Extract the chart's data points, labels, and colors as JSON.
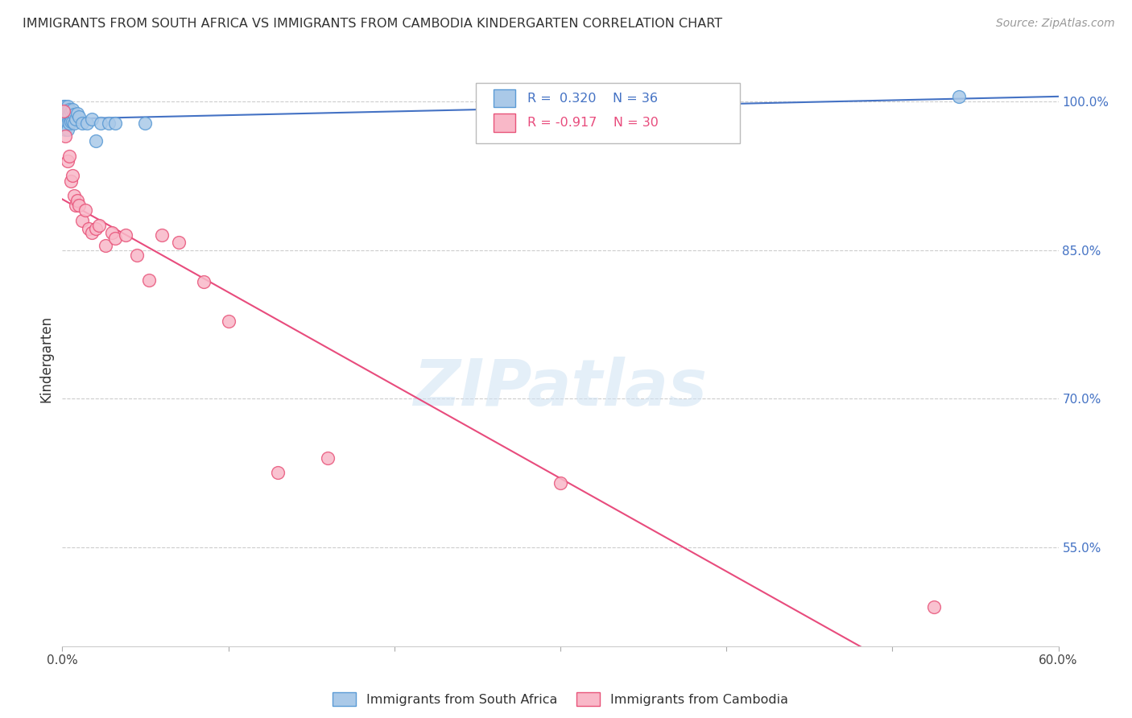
{
  "title": "IMMIGRANTS FROM SOUTH AFRICA VS IMMIGRANTS FROM CAMBODIA KINDERGARTEN CORRELATION CHART",
  "source": "Source: ZipAtlas.com",
  "ylabel": "Kindergarten",
  "x_min": 0.0,
  "x_max": 0.6,
  "y_min": 0.45,
  "y_max": 1.03,
  "x_ticks": [
    0.0,
    0.1,
    0.2,
    0.3,
    0.4,
    0.5,
    0.6
  ],
  "x_tick_labels": [
    "0.0%",
    "",
    "",
    "",
    "",
    "",
    "60.0%"
  ],
  "y_ticks_right": [
    1.0,
    0.85,
    0.7,
    0.55
  ],
  "y_tick_labels_right": [
    "100.0%",
    "85.0%",
    "70.0%",
    "55.0%"
  ],
  "south_africa_color": "#aac9e8",
  "cambodia_color": "#f9b8c8",
  "south_africa_edge_color": "#5b9bd5",
  "cambodia_edge_color": "#e8547a",
  "south_africa_line_color": "#4472c4",
  "cambodia_line_color": "#e84c7d",
  "watermark": "ZIPatlas",
  "south_africa_x": [
    0.001,
    0.001,
    0.001,
    0.001,
    0.001,
    0.002,
    0.002,
    0.002,
    0.002,
    0.002,
    0.003,
    0.003,
    0.003,
    0.003,
    0.003,
    0.004,
    0.004,
    0.004,
    0.005,
    0.005,
    0.006,
    0.006,
    0.007,
    0.007,
    0.008,
    0.009,
    0.01,
    0.012,
    0.015,
    0.018,
    0.02,
    0.023,
    0.028,
    0.032,
    0.05,
    0.54
  ],
  "south_africa_y": [
    0.995,
    0.99,
    0.985,
    0.98,
    0.975,
    0.995,
    0.99,
    0.985,
    0.978,
    0.972,
    0.995,
    0.99,
    0.985,
    0.978,
    0.972,
    0.992,
    0.987,
    0.978,
    0.99,
    0.98,
    0.992,
    0.98,
    0.987,
    0.978,
    0.982,
    0.988,
    0.985,
    0.978,
    0.978,
    0.982,
    0.96,
    0.978,
    0.978,
    0.978,
    0.978,
    1.005
  ],
  "cambodia_x": [
    0.001,
    0.002,
    0.003,
    0.004,
    0.005,
    0.006,
    0.007,
    0.008,
    0.009,
    0.01,
    0.012,
    0.014,
    0.016,
    0.018,
    0.02,
    0.022,
    0.026,
    0.03,
    0.032,
    0.038,
    0.045,
    0.052,
    0.06,
    0.07,
    0.085,
    0.1,
    0.13,
    0.16,
    0.3,
    0.525
  ],
  "cambodia_y": [
    0.99,
    0.965,
    0.94,
    0.945,
    0.92,
    0.925,
    0.905,
    0.895,
    0.9,
    0.895,
    0.88,
    0.89,
    0.872,
    0.868,
    0.872,
    0.875,
    0.855,
    0.868,
    0.862,
    0.865,
    0.845,
    0.82,
    0.865,
    0.858,
    0.818,
    0.778,
    0.625,
    0.64,
    0.615,
    0.49
  ]
}
